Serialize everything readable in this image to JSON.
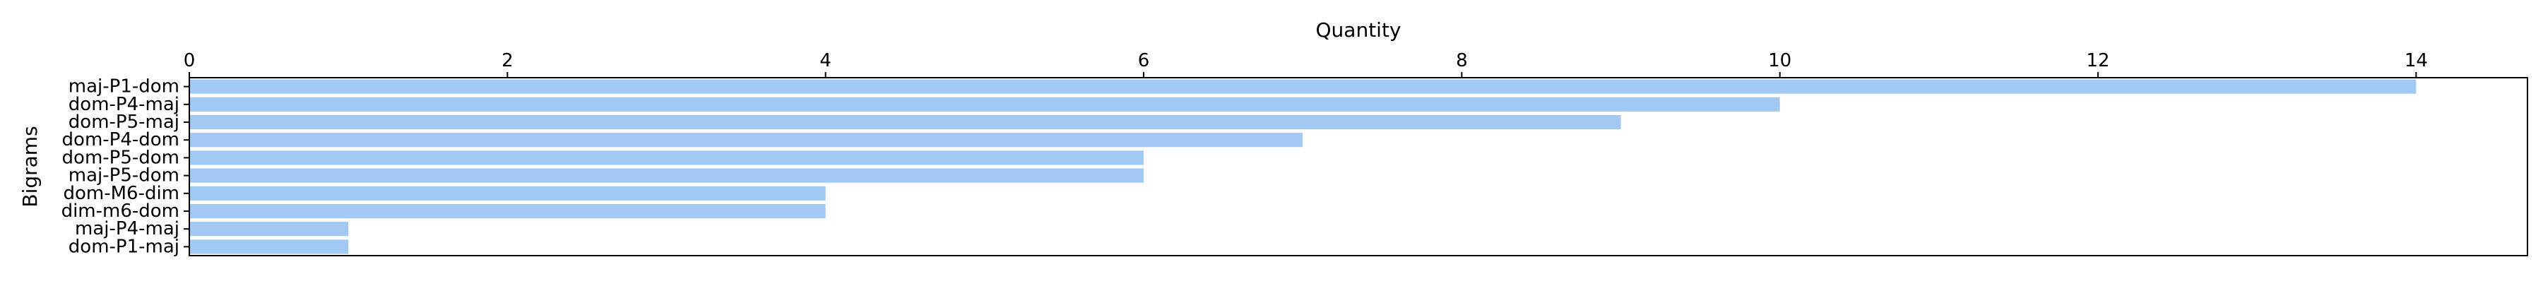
{
  "chart_data": {
    "type": "bar",
    "orientation": "horizontal",
    "title": "",
    "xlabel": "Quantity",
    "ylabel": "Bigrams",
    "x_axis_position": "top",
    "xlim": [
      0,
      14.7
    ],
    "xticks": [
      0,
      2,
      4,
      6,
      8,
      10,
      12,
      14
    ],
    "xtick_labels": [
      "0",
      "2",
      "4",
      "6",
      "8",
      "10",
      "12",
      "14"
    ],
    "grid": false,
    "legend": "none",
    "bar_color": "#a1c9f4",
    "categories": [
      "maj-P1-dom",
      "dom-P4-maj",
      "dom-P5-maj",
      "dom-P4-dom",
      "dom-P5-dom",
      "maj-P5-dom",
      "dom-M6-dim",
      "dim-m6-dom",
      "maj-P4-maj",
      "dom-P1-maj"
    ],
    "values": [
      14,
      10,
      9,
      7,
      6,
      6,
      4,
      4,
      1,
      1
    ]
  }
}
